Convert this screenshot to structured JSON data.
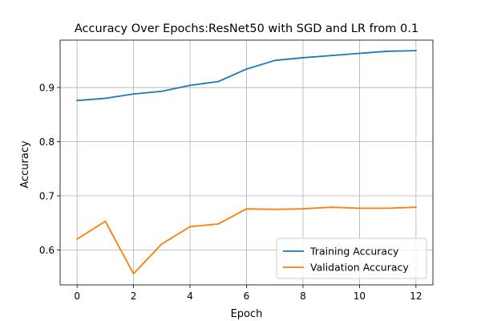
{
  "chart_data": {
    "type": "line",
    "title": "Accuracy Over Epochs:ResNet50 with SGD and LR from 0.1",
    "xlabel": "Epoch",
    "ylabel": "Accuracy",
    "xlim": [
      -0.6,
      12.6
    ],
    "ylim": [
      0.5355,
      0.9875
    ],
    "x_ticks": [
      0,
      2,
      4,
      6,
      8,
      10,
      12
    ],
    "y_ticks": [
      0.6,
      0.7,
      0.8,
      0.9
    ],
    "grid": true,
    "legend_position": "lower-right",
    "x": [
      0,
      1,
      2,
      3,
      4,
      5,
      6,
      7,
      8,
      9,
      10,
      11,
      12
    ],
    "series": [
      {
        "name": "Training Accuracy",
        "color": "#1f77b4",
        "values": [
          0.876,
          0.88,
          0.888,
          0.893,
          0.904,
          0.911,
          0.934,
          0.95,
          0.955,
          0.959,
          0.963,
          0.967,
          0.968
        ]
      },
      {
        "name": "Validation Accuracy",
        "color": "#ff7f0e",
        "values": [
          0.62,
          0.653,
          0.556,
          0.611,
          0.643,
          0.648,
          0.676,
          0.675,
          0.676,
          0.679,
          0.677,
          0.677,
          0.679
        ]
      }
    ]
  }
}
